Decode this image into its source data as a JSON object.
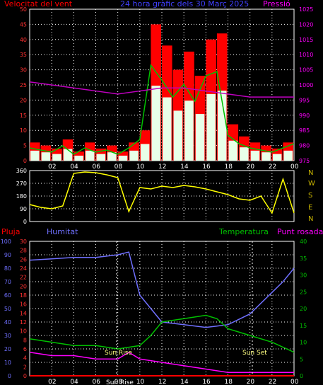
{
  "header": {
    "wind_label": "Velocitat del vent",
    "title": "24 hora gràfic dels   30 Març 2025",
    "pressure_label": "Pressió"
  },
  "compass": [
    "N",
    "W",
    "S",
    "E",
    "N"
  ],
  "bottom_labels": {
    "rain": "Pluja",
    "humidity": "Humitat",
    "temperature": "Temperatura",
    "dewpoint": "Punt rosada",
    "sun_rise": "Sun Rise",
    "sun_set": "Sun Set",
    "sun_rise_axis": "Sun Rise"
  },
  "colors": {
    "wind": "#ff0000",
    "gust": "#00c000",
    "wind_fill": "#e8ffe8",
    "pressure": "#c000c0",
    "direction": "#ffff00",
    "humidity": "#7070ff",
    "temperature": "#00c000",
    "dewpoint": "#ff00ff",
    "rain": "#ff0000"
  },
  "chart_data": [
    {
      "type": "line",
      "panel": "wind_pressure",
      "x_ticks": [
        "02",
        "04",
        "06",
        "08",
        "10",
        "12",
        "14",
        "16",
        "18",
        "20",
        "22",
        "00"
      ],
      "y_left_ticks": [
        0,
        5,
        10,
        15,
        20,
        25,
        30,
        35,
        40,
        45,
        50
      ],
      "y_right_ticks": [
        975,
        980,
        985,
        990,
        995,
        1000,
        1005,
        1010,
        1015,
        1020,
        1025
      ],
      "ylim_left": [
        0,
        50
      ],
      "ylim_right": [
        975,
        1025
      ],
      "series": [
        {
          "name": "Velocitat del vent",
          "axis": "left",
          "x": [
            0,
            1,
            2,
            3,
            4,
            5,
            6,
            7,
            8,
            9,
            10,
            11,
            12,
            13,
            14,
            15,
            16,
            17,
            18,
            19,
            20,
            21,
            22,
            23,
            24
          ],
          "values": [
            6,
            5,
            4,
            7,
            3,
            6,
            4,
            5,
            3,
            6,
            10,
            45,
            38,
            30,
            36,
            28,
            40,
            42,
            12,
            8,
            6,
            5,
            4,
            6,
            8
          ]
        },
        {
          "name": "Pressió",
          "axis": "right",
          "x": [
            0,
            2,
            4,
            6,
            8,
            10,
            12,
            14,
            16,
            18,
            20,
            22,
            24
          ],
          "values": [
            1001,
            1000,
            999,
            998,
            997,
            998,
            999,
            999,
            998,
            997,
            996,
            996,
            996
          ]
        }
      ]
    },
    {
      "type": "line",
      "panel": "wind_direction",
      "y_ticks": [
        0,
        90,
        180,
        270,
        360
      ],
      "ylim": [
        0,
        360
      ],
      "series": [
        {
          "name": "direction",
          "x": [
            0,
            1,
            2,
            3,
            4,
            5,
            6,
            7,
            8,
            9,
            10,
            11,
            12,
            13,
            14,
            15,
            16,
            17,
            18,
            19,
            20,
            21,
            22,
            23,
            24
          ],
          "values": [
            120,
            100,
            90,
            110,
            340,
            350,
            345,
            330,
            310,
            70,
            240,
            230,
            250,
            240,
            255,
            245,
            230,
            210,
            190,
            160,
            150,
            180,
            60,
            300,
            60
          ]
        }
      ]
    },
    {
      "type": "line",
      "panel": "climate",
      "x_ticks": [
        "02",
        "04",
        "06",
        "08",
        "10",
        "12",
        "14",
        "16",
        "18",
        "20",
        "22",
        "00"
      ],
      "y_humidity_ticks": [
        0,
        10,
        20,
        30,
        40,
        50,
        60,
        70,
        80,
        90,
        100
      ],
      "y_rain_ticks": [
        0,
        2,
        4,
        6,
        8,
        10,
        12,
        14,
        16,
        18,
        20,
        22,
        24,
        26,
        28,
        30
      ],
      "y_temp_ticks": [
        0,
        5,
        10,
        15,
        20,
        25,
        30,
        35,
        40
      ],
      "series": [
        {
          "name": "Humitat",
          "axis": "humidity",
          "x": [
            0,
            2,
            4,
            6,
            8,
            9,
            10,
            12,
            14,
            16,
            17,
            18,
            20,
            22,
            23,
            24
          ],
          "values": [
            86,
            87,
            88,
            88,
            90,
            92,
            60,
            40,
            38,
            36,
            37,
            38,
            46,
            62,
            70,
            80
          ]
        },
        {
          "name": "Temperatura",
          "axis": "temperature",
          "x": [
            0,
            2,
            4,
            6,
            8,
            10,
            11,
            12,
            14,
            16,
            17,
            18,
            20,
            22,
            24
          ],
          "values": [
            11,
            10,
            9,
            9,
            8,
            9,
            12,
            16,
            17,
            18,
            17,
            14,
            12,
            10,
            7
          ]
        },
        {
          "name": "Punt rosada",
          "axis": "temperature",
          "x": [
            0,
            2,
            4,
            6,
            8,
            9,
            10,
            12,
            14,
            16,
            18,
            20,
            22,
            24
          ],
          "values": [
            7,
            6,
            6,
            5,
            5,
            7,
            5,
            4,
            3,
            2,
            1,
            1,
            1,
            1
          ]
        },
        {
          "name": "Pluja",
          "axis": "rain",
          "x": [
            0,
            24
          ],
          "values": [
            0,
            0
          ]
        }
      ]
    }
  ]
}
